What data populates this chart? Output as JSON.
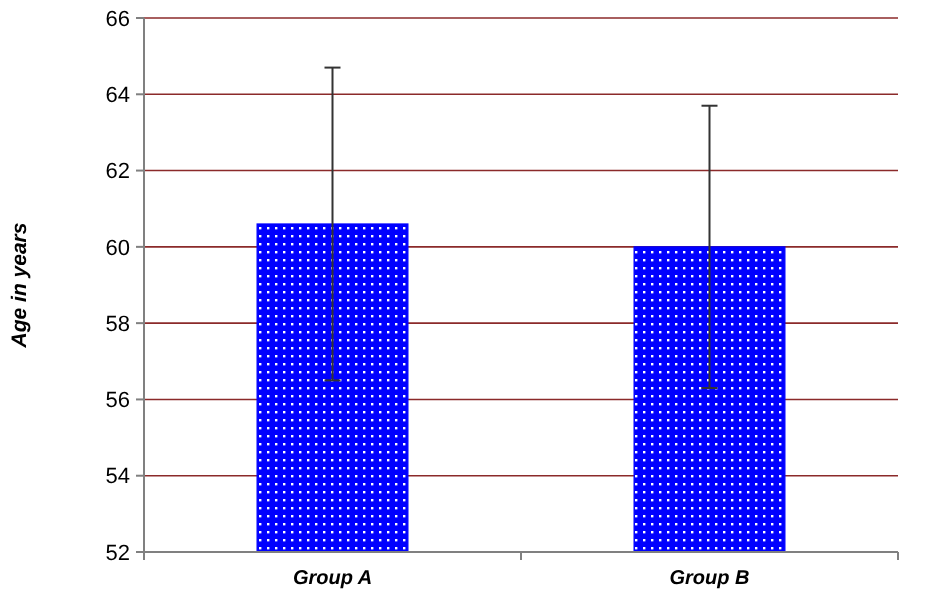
{
  "chart_data": {
    "type": "bar",
    "ylabel": "Age in years",
    "categories": [
      "Group A",
      "Group B"
    ],
    "values": [
      60.6,
      60.0
    ],
    "errors": [
      4.1,
      3.7
    ],
    "color": "#0000ff",
    "ylim": [
      52,
      66
    ],
    "yticks": [
      52,
      54,
      56,
      58,
      60,
      62,
      64,
      66
    ],
    "grid": "y"
  }
}
